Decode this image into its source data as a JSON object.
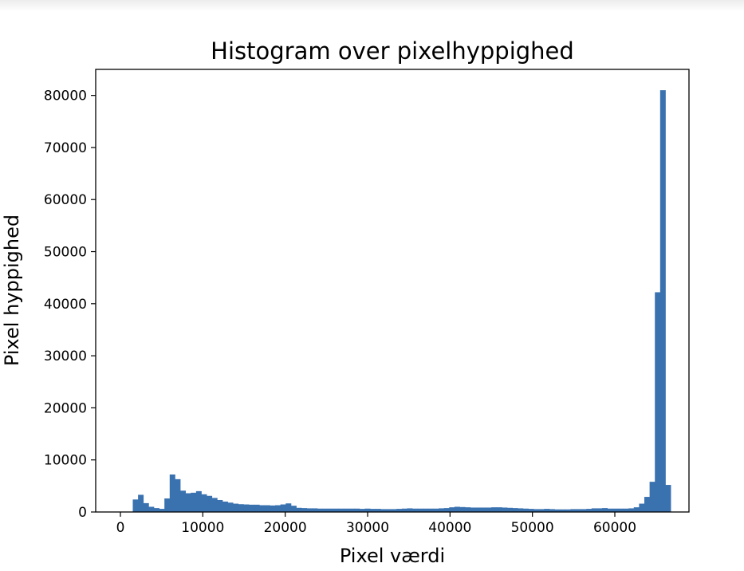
{
  "chart_data": {
    "type": "bar",
    "title": "Histogram over pixelhyppighed",
    "xlabel": "Pixel værdi",
    "ylabel": "Pixel hyppighed",
    "xlim": [
      -3000,
      69000
    ],
    "ylim": [
      0,
      85000
    ],
    "xticks": [
      0,
      10000,
      20000,
      30000,
      40000,
      50000,
      60000
    ],
    "yticks": [
      0,
      10000,
      20000,
      30000,
      40000,
      50000,
      60000,
      70000,
      80000
    ],
    "xtick_labels": [
      "0",
      "10000",
      "20000",
      "30000",
      "40000",
      "50000",
      "60000"
    ],
    "ytick_labels": [
      "0",
      "10000",
      "20000",
      "30000",
      "40000",
      "50000",
      "60000",
      "70000",
      "80000"
    ],
    "grid": false,
    "bar_color": "#3a72b0",
    "bin_start": 1500,
    "bin_width": 640,
    "values": [
      2400,
      3300,
      1700,
      1000,
      750,
      600,
      2600,
      7200,
      6300,
      4100,
      3600,
      3700,
      4000,
      3400,
      3100,
      2700,
      2300,
      2000,
      1800,
      1600,
      1500,
      1450,
      1400,
      1400,
      1300,
      1300,
      1250,
      1300,
      1450,
      1650,
      1200,
      800,
      750,
      700,
      700,
      650,
      650,
      650,
      650,
      650,
      650,
      650,
      650,
      600,
      650,
      600,
      600,
      550,
      550,
      550,
      600,
      650,
      700,
      650,
      650,
      650,
      650,
      650,
      700,
      750,
      900,
      1000,
      950,
      900,
      850,
      850,
      850,
      850,
      900,
      900,
      850,
      800,
      750,
      700,
      650,
      600,
      550,
      550,
      600,
      550,
      500,
      500,
      500,
      550,
      550,
      550,
      600,
      700,
      700,
      750,
      650,
      650,
      650,
      650,
      700,
      900,
      1600,
      2900,
      5800,
      42200,
      81000,
      5200
    ]
  }
}
